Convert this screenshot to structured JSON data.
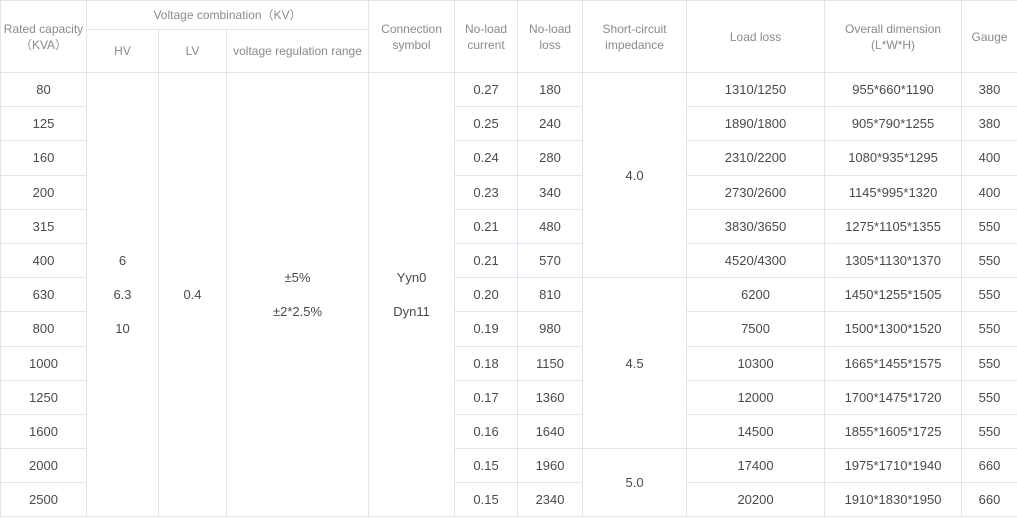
{
  "headers": {
    "rated_capacity": "Rated capacity（KVA）",
    "voltage_combination": "Voltage combination（KV）",
    "hv": "HV",
    "lv": "LV",
    "regulation_range": "voltage regulation range",
    "connection_symbol": "Connection symbol",
    "no_load_current": "No-load current",
    "no_load_loss": "No-load loss",
    "short_circuit_impedance": "Short-circuit impedance",
    "load_loss": "Load loss",
    "overall_dimension": "Overall dimension (L*W*H)",
    "gauge": "Gauge"
  },
  "merged": {
    "hv_values": [
      "6",
      "6.3",
      "10"
    ],
    "lv_value": "0.4",
    "regulation_values": [
      "±5%",
      "±2*2.5%"
    ],
    "connection_values": [
      "Yyn0",
      "Dyn11"
    ],
    "impedance_groups": [
      "4.0",
      "4.5",
      "5.0"
    ]
  },
  "rows": [
    {
      "capacity": "80",
      "current": "0.27",
      "nl_loss": "180",
      "load_loss": "1310/1250",
      "dimension": "955*660*1190",
      "gauge": "380"
    },
    {
      "capacity": "125",
      "current": "0.25",
      "nl_loss": "240",
      "load_loss": "1890/1800",
      "dimension": "905*790*1255",
      "gauge": "380"
    },
    {
      "capacity": "160",
      "current": "0.24",
      "nl_loss": "280",
      "load_loss": "2310/2200",
      "dimension": "1080*935*1295",
      "gauge": "400"
    },
    {
      "capacity": "200",
      "current": "0.23",
      "nl_loss": "340",
      "load_loss": "2730/2600",
      "dimension": "1145*995*1320",
      "gauge": "400"
    },
    {
      "capacity": "315",
      "current": "0.21",
      "nl_loss": "480",
      "load_loss": "3830/3650",
      "dimension": "1275*1105*1355",
      "gauge": "550"
    },
    {
      "capacity": "400",
      "current": "0.21",
      "nl_loss": "570",
      "load_loss": "4520/4300",
      "dimension": "1305*1130*1370",
      "gauge": "550"
    },
    {
      "capacity": "630",
      "current": "0.20",
      "nl_loss": "810",
      "load_loss": "6200",
      "dimension": "1450*1255*1505",
      "gauge": "550"
    },
    {
      "capacity": "800",
      "current": "0.19",
      "nl_loss": "980",
      "load_loss": "7500",
      "dimension": "1500*1300*1520",
      "gauge": "550"
    },
    {
      "capacity": "1000",
      "current": "0.18",
      "nl_loss": "1150",
      "load_loss": "10300",
      "dimension": "1665*1455*1575",
      "gauge": "550"
    },
    {
      "capacity": "1250",
      "current": "0.17",
      "nl_loss": "1360",
      "load_loss": "12000",
      "dimension": "1700*1475*1720",
      "gauge": "550"
    },
    {
      "capacity": "1600",
      "current": "0.16",
      "nl_loss": "1640",
      "load_loss": "14500",
      "dimension": "1855*1605*1725",
      "gauge": "550"
    },
    {
      "capacity": "2000",
      "current": "0.15",
      "nl_loss": "1960",
      "load_loss": "17400",
      "dimension": "1975*1710*1940",
      "gauge": "660"
    },
    {
      "capacity": "2500",
      "current": "0.15",
      "nl_loss": "2340",
      "load_loss": "20200",
      "dimension": "1910*1830*1950",
      "gauge": "660"
    }
  ]
}
